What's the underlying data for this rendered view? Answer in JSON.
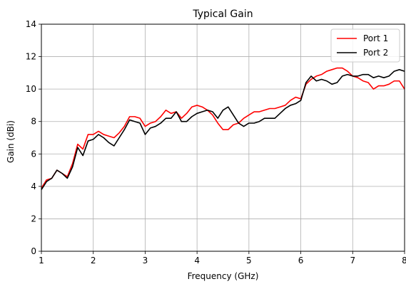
{
  "chart_data": {
    "type": "line",
    "title": "Typical Gain",
    "xlabel": "Frequency (GHz)",
    "ylabel": "Gain (dBi)",
    "xlim": [
      1,
      8
    ],
    "ylim": [
      0,
      14
    ],
    "xticks": [
      "1",
      "2",
      "3",
      "4",
      "5",
      "6",
      "7",
      "8"
    ],
    "yticks": [
      "0",
      "2",
      "4",
      "6",
      "8",
      "10",
      "12",
      "14"
    ],
    "grid": true,
    "legend_position": "top-right",
    "x": [
      1.0,
      1.1,
      1.2,
      1.3,
      1.4,
      1.5,
      1.6,
      1.7,
      1.8,
      1.9,
      2.0,
      2.1,
      2.2,
      2.3,
      2.4,
      2.5,
      2.6,
      2.7,
      2.8,
      2.9,
      3.0,
      3.1,
      3.2,
      3.3,
      3.4,
      3.5,
      3.6,
      3.7,
      3.8,
      3.9,
      4.0,
      4.1,
      4.2,
      4.3,
      4.4,
      4.5,
      4.6,
      4.7,
      4.8,
      4.9,
      5.0,
      5.1,
      5.2,
      5.3,
      5.4,
      5.5,
      5.6,
      5.7,
      5.8,
      5.9,
      6.0,
      6.1,
      6.2,
      6.3,
      6.4,
      6.5,
      6.6,
      6.7,
      6.8,
      6.9,
      7.0,
      7.1,
      7.2,
      7.3,
      7.4,
      7.5,
      7.6,
      7.7,
      7.8,
      7.9,
      8.0
    ],
    "series": [
      {
        "name": "Port 1",
        "color": "#ff0000",
        "values": [
          3.9,
          4.4,
          4.5,
          5.0,
          4.8,
          4.6,
          5.4,
          6.6,
          6.3,
          7.2,
          7.2,
          7.4,
          7.2,
          7.1,
          7.0,
          7.3,
          7.7,
          8.3,
          8.3,
          8.2,
          7.7,
          7.9,
          8.0,
          8.3,
          8.7,
          8.5,
          8.6,
          8.2,
          8.5,
          8.9,
          9.0,
          8.9,
          8.7,
          8.4,
          7.9,
          7.5,
          7.5,
          7.8,
          7.9,
          8.2,
          8.4,
          8.6,
          8.6,
          8.7,
          8.8,
          8.8,
          8.9,
          9.0,
          9.3,
          9.5,
          9.4,
          10.3,
          10.6,
          10.8,
          10.9,
          11.1,
          11.2,
          11.3,
          11.3,
          11.1,
          10.8,
          10.7,
          10.5,
          10.4,
          10.0,
          10.2,
          10.2,
          10.3,
          10.5,
          10.5,
          10.0
        ]
      },
      {
        "name": "Port 2",
        "color": "#000000",
        "values": [
          3.8,
          4.3,
          4.5,
          5.0,
          4.8,
          4.5,
          5.2,
          6.4,
          5.9,
          6.8,
          6.9,
          7.2,
          7.0,
          6.7,
          6.5,
          7.0,
          7.5,
          8.1,
          8.0,
          7.9,
          7.2,
          7.6,
          7.7,
          7.9,
          8.2,
          8.2,
          8.6,
          8.0,
          8.0,
          8.3,
          8.5,
          8.6,
          8.7,
          8.6,
          8.2,
          8.7,
          8.9,
          8.4,
          7.9,
          7.7,
          7.9,
          7.9,
          8.0,
          8.2,
          8.2,
          8.2,
          8.5,
          8.8,
          9.0,
          9.1,
          9.3,
          10.4,
          10.8,
          10.5,
          10.6,
          10.5,
          10.3,
          10.4,
          10.8,
          10.9,
          10.8,
          10.8,
          10.9,
          10.9,
          10.7,
          10.8,
          10.7,
          10.8,
          11.1,
          11.2,
          11.1
        ]
      }
    ]
  }
}
